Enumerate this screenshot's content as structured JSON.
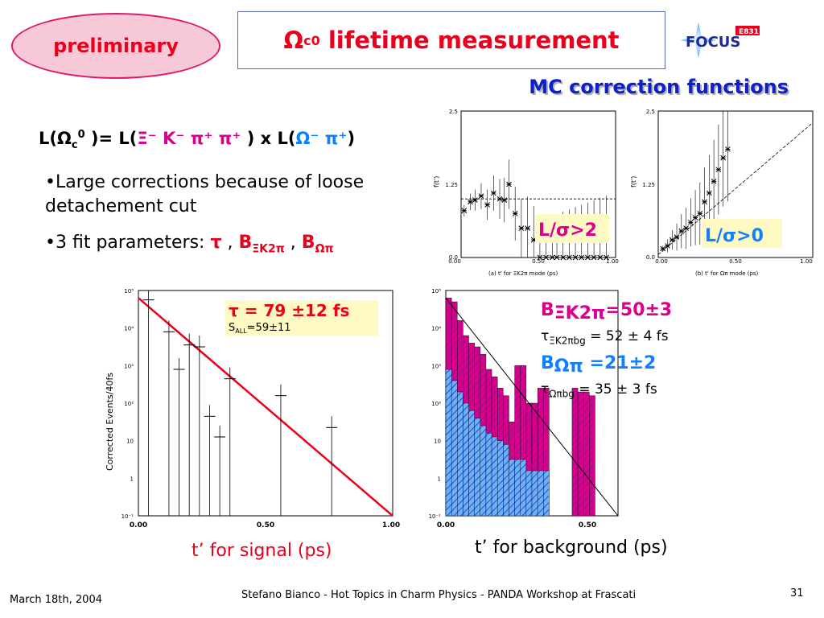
{
  "badge": "preliminary",
  "title": {
    "omega": "Ω",
    "sub": "c",
    "sup": "0",
    "text": "lifetime measurement"
  },
  "logo": {
    "text": "FOCUS",
    "tag": "E831"
  },
  "mc_title": "MC correction functions",
  "formula": {
    "l1": "L(Ω",
    "l1_sub": "c",
    "l1_sup": "0",
    "l2": " )= L(",
    "xi_part": "Ξ⁻ K⁻ π⁺ π⁺",
    "l3": " ) x L(",
    "om_part": "Ω⁻ π⁺",
    "l4": ")"
  },
  "bullets": {
    "b1": "•Large corrections because of loose detachement cut",
    "b2_pre": "•3 fit parameters: ",
    "b2_tau": "τ",
    "b2_sep1": " , ",
    "b2_b1": "B",
    "b2_b1_sub": "ΞK2π",
    "b2_sep2": " , ",
    "b2_b2": "B",
    "b2_b2_sub": "Ωπ"
  },
  "annotations": {
    "ls2": "L/σ>2",
    "ls0": "L/σ>0",
    "tau_fit": "τ = 79 ±12 fs",
    "s_all_pre": "S",
    "s_all_sub": "ALL",
    "s_all_val": "=59±11",
    "bxi": "B",
    "bxi_sub": "ΞK2π",
    "bxi_val": "=50±3",
    "tau_xi": "τ",
    "tau_xi_sub": "ΞK2πbg",
    "tau_xi_val": " = 52 ± 4 fs",
    "bom": "B",
    "bom_sub": "Ωπ",
    "bom_val": " =21±2",
    "tau_om": "τ",
    "tau_om_sub": "Ωπbg",
    "tau_om_val": " = 35 ± 3 fs"
  },
  "captions": {
    "left": "t’ for signal (ps)",
    "right": "t’ for background (ps)"
  },
  "footer": {
    "date": "March 18th, 2004",
    "center": "Stefano Bianco - Hot Topics in Charm Physics - PANDA Workshop at Frascati",
    "page": "31"
  },
  "colors": {
    "red": "#e8001c",
    "magenta": "#d8008c",
    "blue": "#1080ff",
    "hatch_blue": "#6ab0ff"
  },
  "chart_data": [
    {
      "type": "scatter",
      "xlabel": "(a) t' for ΞK2π mode (ps)",
      "ylabel": "f(t')",
      "xlim": [
        0,
        1.0
      ],
      "ylim": [
        0,
        2.5
      ],
      "x_ticks": [
        "0.00",
        "0.50",
        "1.00"
      ],
      "y_ticks": [
        "0.0",
        "1.25",
        "2.5"
      ],
      "reference_line": 1.0,
      "x": [
        0.02,
        0.06,
        0.09,
        0.13,
        0.17,
        0.21,
        0.25,
        0.28,
        0.31,
        0.35,
        0.39,
        0.43,
        0.47,
        0.51,
        0.55,
        0.59,
        0.62,
        0.66,
        0.7,
        0.74,
        0.78,
        0.82,
        0.86,
        0.9,
        0.94
      ],
      "y": [
        0.8,
        0.95,
        0.98,
        1.05,
        0.9,
        1.1,
        1.0,
        0.98,
        1.25,
        0.75,
        0.5,
        0.5,
        0.3,
        0.0,
        0.0,
        0.0,
        0.0,
        0.0,
        0.0,
        0.0,
        0.0,
        0.0,
        0.0,
        0.0,
        0.0
      ]
    },
    {
      "type": "scatter",
      "xlabel": "(b) t' for Ωπ mode (ps)",
      "ylabel": "f(t')",
      "xlim": [
        0,
        1.0
      ],
      "ylim": [
        0,
        2.5
      ],
      "x_ticks": [
        "0.00",
        "0.50",
        "1.00"
      ],
      "y_ticks": [
        "0.0",
        "1.25",
        "2.5"
      ],
      "trend": {
        "x": [
          0.0,
          1.0
        ],
        "y": [
          0.05,
          2.3
        ]
      },
      "x": [
        0.03,
        0.06,
        0.09,
        0.12,
        0.15,
        0.18,
        0.21,
        0.24,
        0.27,
        0.3,
        0.33,
        0.36,
        0.39,
        0.42,
        0.45
      ],
      "y": [
        0.15,
        0.2,
        0.3,
        0.35,
        0.45,
        0.5,
        0.6,
        0.68,
        0.75,
        0.95,
        1.1,
        1.3,
        1.5,
        1.7,
        1.85
      ]
    },
    {
      "type": "scatter",
      "ylabel": "Corrected Events/40fs",
      "xlim": [
        0,
        1.0
      ],
      "ylim_log10": [
        -1,
        5
      ],
      "x_ticks": [
        "0.00",
        "0.50",
        "1.00"
      ],
      "y_ticks": [
        "10⁻¹",
        "1",
        "10",
        "10²",
        "10³",
        "10⁴",
        "10⁵"
      ],
      "fit_line_log10": {
        "x": [
          0.0,
          1.0
        ],
        "y": [
          4.8,
          -1.0
        ]
      },
      "x": [
        0.04,
        0.12,
        0.16,
        0.2,
        0.24,
        0.28,
        0.32,
        0.36,
        0.56,
        0.76
      ],
      "log10_y": [
        4.75,
        3.9,
        2.9,
        3.55,
        3.5,
        1.65,
        1.1,
        2.65,
        2.2,
        1.35
      ]
    },
    {
      "type": "bar",
      "xlim": [
        0,
        0.6
      ],
      "ylim_log10": [
        -1,
        5
      ],
      "x_ticks": [
        "0.00",
        "0.50"
      ],
      "y_ticks": [
        "10⁻¹",
        "1",
        "10",
        "10²",
        "10³",
        "10⁴",
        "10⁵"
      ],
      "bin_edges": [
        0.0,
        0.02,
        0.04,
        0.06,
        0.08,
        0.1,
        0.12,
        0.14,
        0.16,
        0.18,
        0.2,
        0.22,
        0.24,
        0.26,
        0.28,
        0.3,
        0.32,
        0.34,
        0.36,
        0.38,
        0.4,
        0.42,
        0.44,
        0.46,
        0.48,
        0.5,
        0.52
      ],
      "series": [
        {
          "name": "",
          "log10_values": [
            4.8,
            4.7,
            4.2,
            3.8,
            3.6,
            3.5,
            3.3,
            2.9,
            2.7,
            2.4,
            2.2,
            1.5,
            3.0,
            3.0,
            2.0,
            2.0,
            2.4,
            2.4,
            -1,
            -1,
            -1,
            -1,
            2.4,
            2.3,
            2.3,
            2.2
          ]
        },
        {
          "name": "",
          "log10_values": [
            2.9,
            2.6,
            2.3,
            2.0,
            1.8,
            1.6,
            1.4,
            1.2,
            1.1,
            1.0,
            0.9,
            0.5,
            0.5,
            0.5,
            0.2,
            0.2,
            0.2,
            0.2,
            -1,
            -1,
            -1,
            -1,
            -1,
            -1,
            -1,
            -1
          ]
        }
      ],
      "fit_line_log10": {
        "x": [
          0.0,
          0.6
        ],
        "y": [
          4.8,
          -1.0
        ]
      }
    }
  ]
}
